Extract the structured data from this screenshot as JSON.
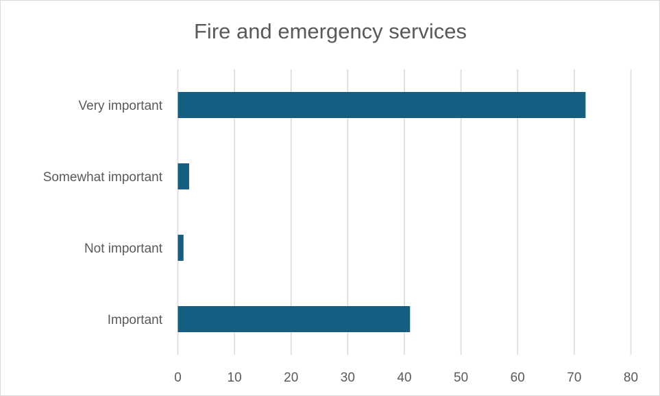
{
  "chart_data": {
    "type": "bar",
    "orientation": "horizontal",
    "title": "Fire and emergency services",
    "categories": [
      "Very important",
      "Somewhat important",
      "Not important",
      "Important"
    ],
    "values": [
      72,
      2,
      1,
      41
    ],
    "xlim": [
      0,
      80
    ],
    "xticks": [
      "0",
      "10",
      "20",
      "30",
      "40",
      "50",
      "60",
      "70",
      "80"
    ],
    "grid": "vertical",
    "legend": "none",
    "bar_color": "#156082"
  }
}
